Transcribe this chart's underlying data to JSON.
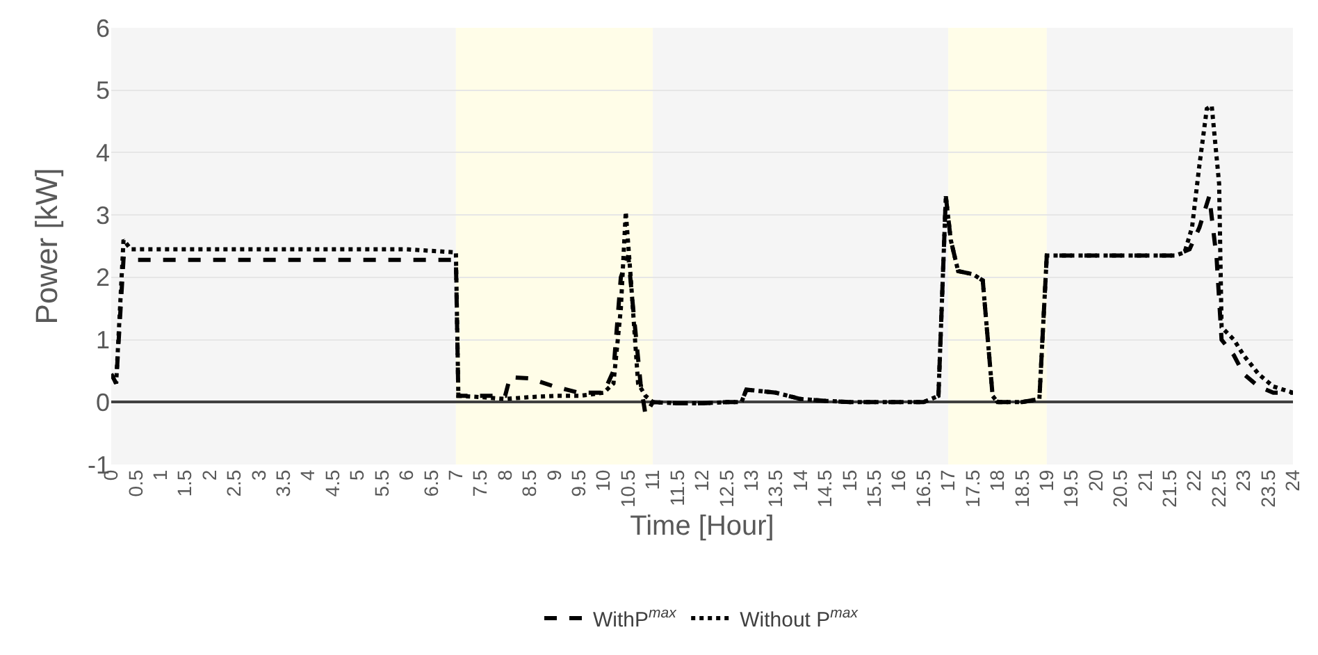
{
  "chart_data": {
    "type": "line",
    "xlabel": "Time [Hour]",
    "ylabel": "Power [kW]",
    "xlim": [
      0,
      24
    ],
    "xticks": [
      {
        "value": 0,
        "label": "0"
      },
      {
        "value": 0.5,
        "label": "0.5"
      },
      {
        "value": 1,
        "label": "1"
      },
      {
        "value": 1.5,
        "label": "1.5"
      },
      {
        "value": 2,
        "label": "2"
      },
      {
        "value": 2.5,
        "label": "2.5"
      },
      {
        "value": 3,
        "label": "3"
      },
      {
        "value": 3.5,
        "label": "3.5"
      },
      {
        "value": 4,
        "label": "4"
      },
      {
        "value": 4.5,
        "label": "4.5"
      },
      {
        "value": 5,
        "label": "5"
      },
      {
        "value": 5.5,
        "label": "5.5"
      },
      {
        "value": 6,
        "label": "6"
      },
      {
        "value": 6.5,
        "label": "6.5"
      },
      {
        "value": 7,
        "label": "7"
      },
      {
        "value": 7.5,
        "label": "7.5"
      },
      {
        "value": 8,
        "label": "8"
      },
      {
        "value": 8.5,
        "label": "8.5"
      },
      {
        "value": 9,
        "label": "9"
      },
      {
        "value": 9.5,
        "label": "9.5"
      },
      {
        "value": 10,
        "label": "10"
      },
      {
        "value": 10.5,
        "label": "10.5"
      },
      {
        "value": 11,
        "label": "11"
      },
      {
        "value": 11.5,
        "label": "11.5"
      },
      {
        "value": 12,
        "label": "12"
      },
      {
        "value": 12.5,
        "label": "12.5"
      },
      {
        "value": 13,
        "label": "13"
      },
      {
        "value": 13.5,
        "label": "13.5"
      },
      {
        "value": 14,
        "label": "14"
      },
      {
        "value": 14.5,
        "label": "14.5"
      },
      {
        "value": 15,
        "label": "15"
      },
      {
        "value": 15.5,
        "label": "15.5"
      },
      {
        "value": 16,
        "label": "16"
      },
      {
        "value": 16.5,
        "label": "16.5"
      },
      {
        "value": 17,
        "label": "17"
      },
      {
        "value": 17.5,
        "label": "17.5"
      },
      {
        "value": 18,
        "label": "18"
      },
      {
        "value": 18.5,
        "label": "18.5"
      },
      {
        "value": 19,
        "label": "19"
      },
      {
        "value": 19.5,
        "label": "19.5"
      },
      {
        "value": 20,
        "label": "20"
      },
      {
        "value": 20.5,
        "label": "20.5"
      },
      {
        "value": 21,
        "label": "21"
      },
      {
        "value": 21.5,
        "label": "21.5"
      },
      {
        "value": 22,
        "label": "22"
      },
      {
        "value": 22.5,
        "label": "22.5"
      },
      {
        "value": 23,
        "label": "23"
      },
      {
        "value": 23.5,
        "label": "23.5"
      },
      {
        "value": 24,
        "label": "24"
      }
    ],
    "ylim": [
      -1,
      6
    ],
    "yticks": [
      -1,
      0,
      1,
      2,
      3,
      4,
      5,
      6
    ],
    "grid": "y",
    "legend": "bottom",
    "bands": [
      {
        "axis": "x",
        "from": 0,
        "to": 7,
        "color": "#f5f5f5"
      },
      {
        "axis": "x",
        "from": 7,
        "to": 11,
        "color": "#fffde8"
      },
      {
        "axis": "x",
        "from": 11,
        "to": 17,
        "color": "#f5f5f5"
      },
      {
        "axis": "x",
        "from": 17,
        "to": 19,
        "color": "#fffde8"
      },
      {
        "axis": "x",
        "from": 19,
        "to": 24,
        "color": "#f5f5f5"
      }
    ],
    "series": [
      {
        "name": "WithP$^{max}$",
        "color": "#000000",
        "line_style": "dashed",
        "x": [
          0,
          0.1,
          0.25,
          0.5,
          1,
          2,
          3,
          4,
          5,
          6,
          7,
          7.05,
          7.5,
          8,
          8.1,
          8.5,
          9,
          9.5,
          10,
          10.2,
          10.35,
          10.5,
          10.6,
          10.75,
          10.85,
          11,
          11.5,
          12,
          12.5,
          12.8,
          12.9,
          13.5,
          14,
          14.5,
          15,
          16,
          16.5,
          16.8,
          16.95,
          17.05,
          17.2,
          17.5,
          17.7,
          17.9,
          18,
          18.5,
          18.85,
          19,
          20,
          21,
          21.6,
          21.9,
          22.1,
          22.3,
          22.45,
          22.55,
          22.8,
          23,
          23.3,
          23.6,
          24
        ],
        "values": [
          0.45,
          0.3,
          2.3,
          2.28,
          2.28,
          2.28,
          2.28,
          2.28,
          2.28,
          2.28,
          2.28,
          0.1,
          0.1,
          0.1,
          0.4,
          0.38,
          0.25,
          0.15,
          0.15,
          0.5,
          2.0,
          2.35,
          1.5,
          0.3,
          -0.2,
          0,
          -0.02,
          -0.02,
          0,
          0,
          0.2,
          0.15,
          0.05,
          0.02,
          0,
          0,
          0,
          0.1,
          3.3,
          2.6,
          2.1,
          2.05,
          1.95,
          0.1,
          0,
          0,
          0.05,
          2.35,
          2.35,
          2.35,
          2.35,
          2.45,
          2.8,
          3.3,
          2.3,
          1.0,
          0.75,
          0.45,
          0.25,
          0.15,
          0.15
        ]
      },
      {
        "name": "Without P$^{max}$",
        "color": "#000000",
        "line_style": "dotted",
        "x": [
          0,
          0.1,
          0.25,
          0.4,
          1,
          2,
          3,
          4,
          5,
          6,
          7,
          7.05,
          7.5,
          8,
          8.5,
          9,
          9.5,
          10,
          10.2,
          10.35,
          10.45,
          10.55,
          10.7,
          10.85,
          11,
          11.5,
          12,
          12.5,
          12.8,
          12.9,
          13.5,
          14,
          14.5,
          15,
          16,
          16.5,
          16.8,
          16.95,
          17.05,
          17.2,
          17.5,
          17.7,
          17.9,
          18,
          18.5,
          18.85,
          19,
          20,
          21,
          21.6,
          21.8,
          21.95,
          22.1,
          22.25,
          22.35,
          22.5,
          22.55,
          22.8,
          23,
          23.3,
          23.6,
          24
        ],
        "values": [
          0.45,
          0.3,
          2.6,
          2.45,
          2.45,
          2.45,
          2.45,
          2.45,
          2.45,
          2.45,
          2.4,
          0.1,
          0.08,
          0.05,
          0.08,
          0.1,
          0.1,
          0.15,
          0.3,
          1.5,
          3.05,
          2.0,
          0.3,
          0.1,
          0,
          -0.02,
          -0.02,
          0,
          0,
          0.2,
          0.15,
          0.05,
          0.02,
          0,
          0,
          0,
          0.1,
          3.3,
          2.6,
          2.1,
          2.05,
          1.95,
          0.1,
          0,
          0,
          0.05,
          2.35,
          2.35,
          2.35,
          2.35,
          2.4,
          2.8,
          3.8,
          4.7,
          4.75,
          3.5,
          1.2,
          1.0,
          0.75,
          0.45,
          0.25,
          0.15
        ]
      }
    ]
  }
}
